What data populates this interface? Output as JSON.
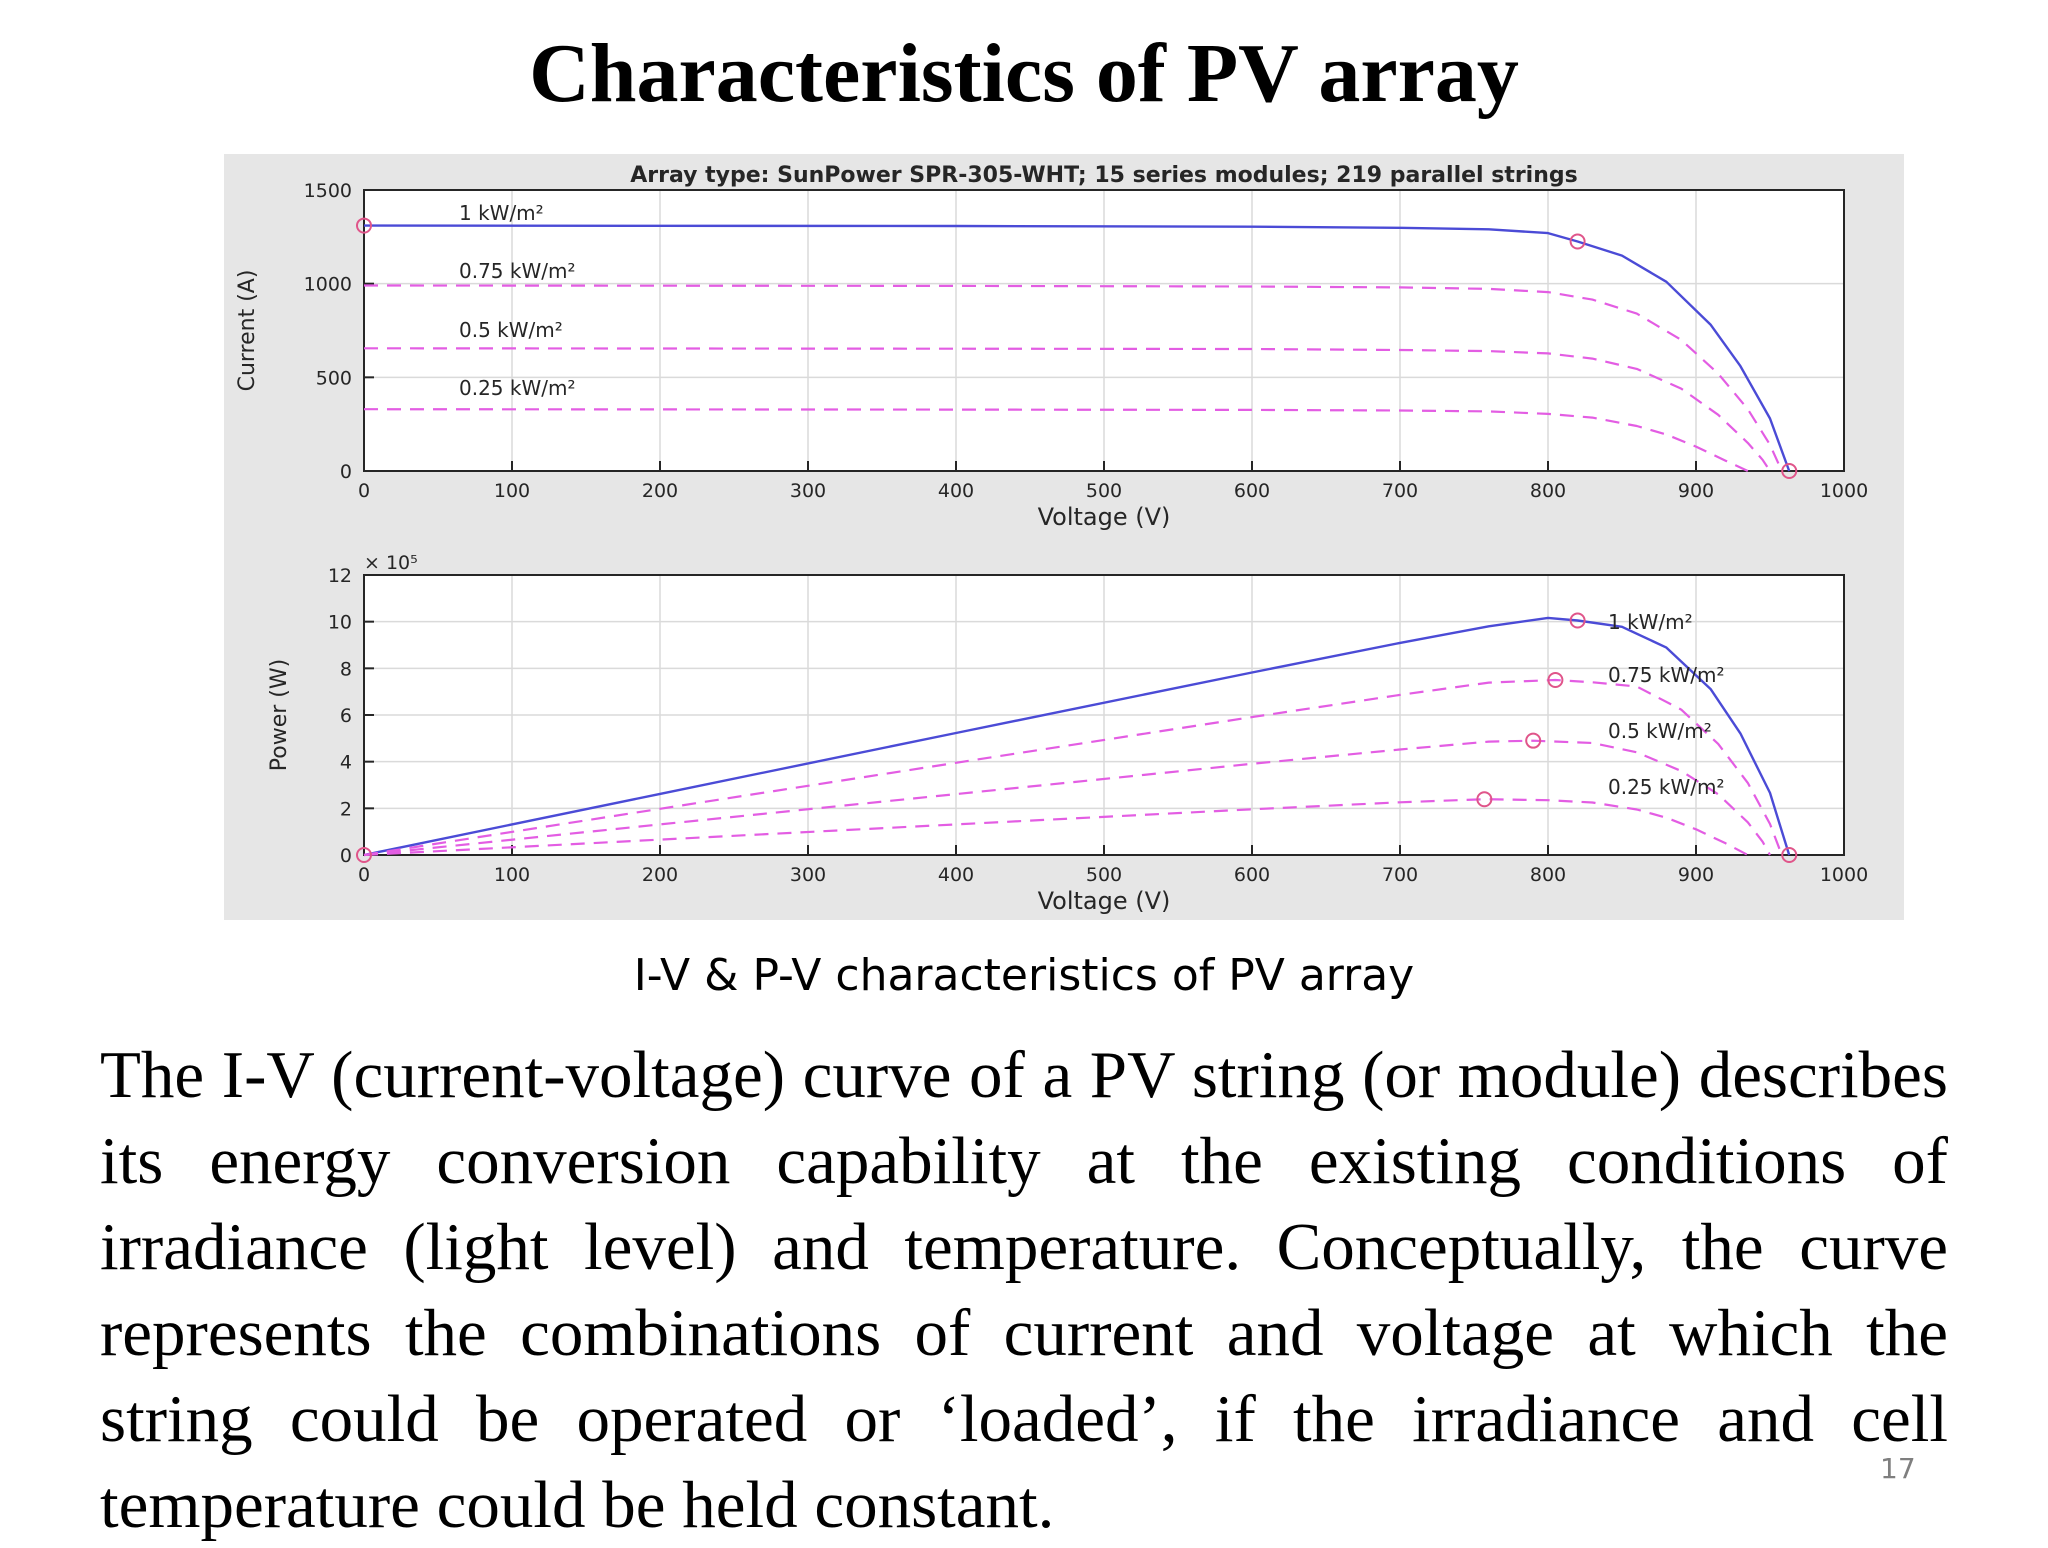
{
  "slide": {
    "title": "Characteristics of PV array",
    "caption": "I-V & P-V characteristics of PV array",
    "body": "The I-V (current-voltage) curve of a PV string (or module) describes its energy conversion capability at the existing conditions of irradiance (light level) and temperature. Conceptually, the curve represents the combinations of current and voltage at which the string could be operated or ‘loaded’, if the irradiance and cell temperature could be held constant.",
    "page_number": "17"
  },
  "colors": {
    "full_irradiance_line": "#4b4bd6",
    "reduced_irradiance_line": "#e35de3",
    "marker": "#e0558a",
    "plot_bg": "#ffffff",
    "panel_bg": "#e6e6e6",
    "grid": "#dadada"
  },
  "chart_data": [
    {
      "type": "line",
      "title": "Array type: SunPower SPR-305-WHT; 15 series modules; 219 parallel strings",
      "xlabel": "Voltage (V)",
      "ylabel": "Current (A)",
      "xlim": [
        0,
        1000
      ],
      "ylim": [
        0,
        1500
      ],
      "xticks": [
        0,
        100,
        200,
        300,
        400,
        500,
        600,
        700,
        800,
        900,
        1000
      ],
      "yticks": [
        0,
        500,
        1000,
        1500
      ],
      "grid": true,
      "series": [
        {
          "name": "1 kW/m²",
          "style": "solid",
          "x": [
            0,
            200,
            400,
            600,
            700,
            760,
            800,
            820,
            850,
            880,
            910,
            930,
            950,
            963
          ],
          "y": [
            1310,
            1309,
            1308,
            1304,
            1298,
            1290,
            1270,
            1225,
            1150,
            1010,
            780,
            560,
            280,
            0
          ]
        },
        {
          "name": "0.75 kW/m²",
          "style": "dashed",
          "x": [
            0,
            200,
            400,
            600,
            700,
            760,
            800,
            830,
            860,
            890,
            915,
            935,
            950,
            958
          ],
          "y": [
            990,
            989,
            988,
            985,
            980,
            972,
            955,
            915,
            840,
            700,
            520,
            330,
            140,
            0
          ]
        },
        {
          "name": "0.5 kW/m²",
          "style": "dashed",
          "x": [
            0,
            200,
            400,
            600,
            700,
            760,
            800,
            830,
            860,
            890,
            915,
            935,
            945,
            950
          ],
          "y": [
            655,
            654,
            653,
            651,
            646,
            640,
            628,
            600,
            545,
            440,
            300,
            150,
            60,
            0
          ]
        },
        {
          "name": "0.25 kW/m²",
          "style": "dashed",
          "x": [
            0,
            200,
            400,
            600,
            700,
            760,
            800,
            830,
            860,
            880,
            900,
            920,
            935
          ],
          "y": [
            330,
            329,
            328,
            326,
            323,
            318,
            305,
            285,
            240,
            195,
            130,
            55,
            0
          ]
        }
      ],
      "markers": [
        {
          "x": 0,
          "y": 1310
        },
        {
          "x": 820,
          "y": 1225
        },
        {
          "x": 963,
          "y": 0
        }
      ]
    },
    {
      "type": "line",
      "title": "",
      "xlabel": "Voltage (V)",
      "ylabel": "Power (W)",
      "y_multiplier": "× 10⁵",
      "xlim": [
        0,
        1000
      ],
      "ylim": [
        0,
        12
      ],
      "xticks": [
        0,
        100,
        200,
        300,
        400,
        500,
        600,
        700,
        800,
        900,
        1000
      ],
      "yticks": [
        0,
        2,
        4,
        6,
        8,
        10,
        12
      ],
      "grid": true,
      "series": [
        {
          "name": "1 kW/m²",
          "style": "solid",
          "x": [
            0,
            200,
            400,
            600,
            700,
            760,
            800,
            820,
            850,
            880,
            910,
            930,
            950,
            963
          ],
          "y": [
            0,
            2.62,
            5.23,
            7.82,
            9.09,
            9.8,
            10.16,
            10.05,
            9.78,
            8.89,
            7.1,
            5.21,
            2.66,
            0
          ]
        },
        {
          "name": "0.75 kW/m²",
          "style": "dashed",
          "x": [
            0,
            200,
            400,
            600,
            700,
            760,
            805,
            830,
            860,
            890,
            915,
            935,
            950,
            958
          ],
          "y": [
            0,
            1.98,
            3.95,
            5.91,
            6.86,
            7.39,
            7.5,
            7.4,
            7.22,
            6.23,
            4.76,
            3.09,
            1.33,
            0
          ]
        },
        {
          "name": "0.5 kW/m²",
          "style": "dashed",
          "x": [
            0,
            200,
            400,
            600,
            700,
            760,
            790,
            830,
            860,
            890,
            915,
            935,
            945,
            950
          ],
          "y": [
            0,
            1.31,
            2.61,
            3.91,
            4.52,
            4.86,
            4.9,
            4.8,
            4.4,
            3.6,
            2.6,
            1.4,
            0.57,
            0
          ]
        },
        {
          "name": "0.25 kW/m²",
          "style": "dashed",
          "x": [
            0,
            200,
            400,
            600,
            700,
            757,
            800,
            830,
            860,
            880,
            900,
            920,
            935
          ],
          "y": [
            0,
            0.66,
            1.31,
            1.96,
            2.26,
            2.39,
            2.35,
            2.25,
            1.95,
            1.6,
            1.1,
            0.5,
            0
          ]
        }
      ],
      "markers": [
        {
          "x": 0,
          "y": 0
        },
        {
          "x": 820,
          "y": 10.05
        },
        {
          "x": 805,
          "y": 7.5
        },
        {
          "x": 790,
          "y": 4.9
        },
        {
          "x": 757,
          "y": 2.39
        },
        {
          "x": 963,
          "y": 0
        }
      ]
    }
  ]
}
